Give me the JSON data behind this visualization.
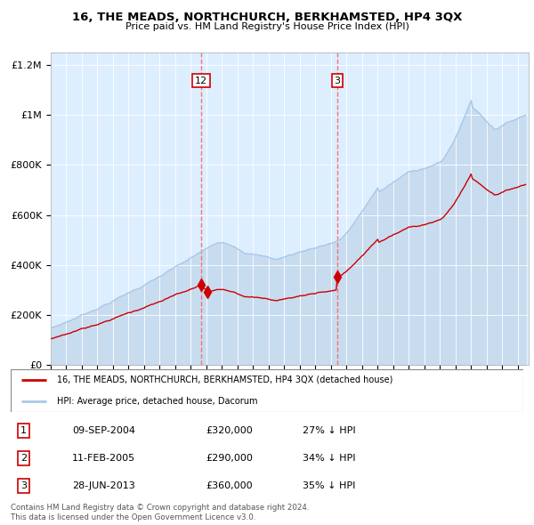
{
  "title": "16, THE MEADS, NORTHCHURCH, BERKHAMSTED, HP4 3QX",
  "subtitle": "Price paid vs. HM Land Registry's House Price Index (HPI)",
  "legend_line1": "16, THE MEADS, NORTHCHURCH, BERKHAMSTED, HP4 3QX (detached house)",
  "legend_line2": "HPI: Average price, detached house, Dacorum",
  "footer1": "Contains HM Land Registry data © Crown copyright and database right 2024.",
  "footer2": "This data is licensed under the Open Government Licence v3.0.",
  "transactions": [
    {
      "num": 1,
      "date": "09-SEP-2004",
      "price": "£320,000",
      "pct": "27%",
      "dir": "↓",
      "label": "HPI"
    },
    {
      "num": 2,
      "date": "11-FEB-2005",
      "price": "£290,000",
      "pct": "34%",
      "dir": "↓",
      "label": "HPI"
    },
    {
      "num": 3,
      "date": "28-JUN-2013",
      "price": "£360,000",
      "pct": "35%",
      "dir": "↓",
      "label": "HPI"
    }
  ],
  "hpi_color": "#a8c8e8",
  "hpi_fill_color": "#c8dff0",
  "price_color": "#cc0000",
  "vline_color": "#ff6666",
  "background_color": "#ddeeff",
  "chart_bg": "#e8f0f8",
  "ylim": [
    0,
    1250000
  ],
  "yticks": [
    0,
    200000,
    400000,
    600000,
    800000,
    1000000,
    1200000
  ],
  "start_year": 1995,
  "end_year": 2025,
  "t1_year": 2004,
  "t1_month": 9,
  "t2_year": 2005,
  "t2_month": 2,
  "t3_year": 2013,
  "t3_month": 6,
  "t1_price": 320000,
  "t2_price": 290000,
  "t3_price": 360000
}
